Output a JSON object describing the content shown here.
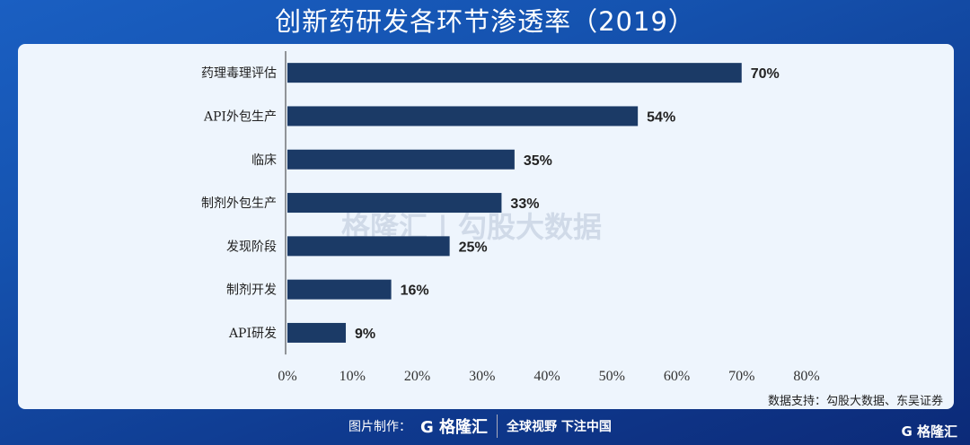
{
  "title": "创新药研发各环节渗透率（2019）",
  "source": "数据支持：勾股大数据、东吴证券",
  "watermark": "格隆汇 | 勾股大数据",
  "footer": {
    "made_by": "图片制作：",
    "logo": "G 格隆汇",
    "slogan": "全球视野 下注中国",
    "corner_logo": "G 格隆汇"
  },
  "chart_data": {
    "type": "bar",
    "orientation": "horizontal",
    "categories": [
      "药理毒理评估",
      "API外包生产",
      "临床",
      "制剂外包生产",
      "发现阶段",
      "制剂开发",
      "API研发"
    ],
    "values": [
      70,
      54,
      35,
      33,
      25,
      16,
      9
    ],
    "value_labels": [
      "70%",
      "54%",
      "35%",
      "33%",
      "25%",
      "16%",
      "9%"
    ],
    "xlim": [
      0,
      80
    ],
    "xticks": [
      "0%",
      "10%",
      "20%",
      "30%",
      "40%",
      "50%",
      "60%",
      "70%",
      "80%"
    ],
    "bar_color": "#1b3a66",
    "grid": false,
    "legend": "none"
  }
}
